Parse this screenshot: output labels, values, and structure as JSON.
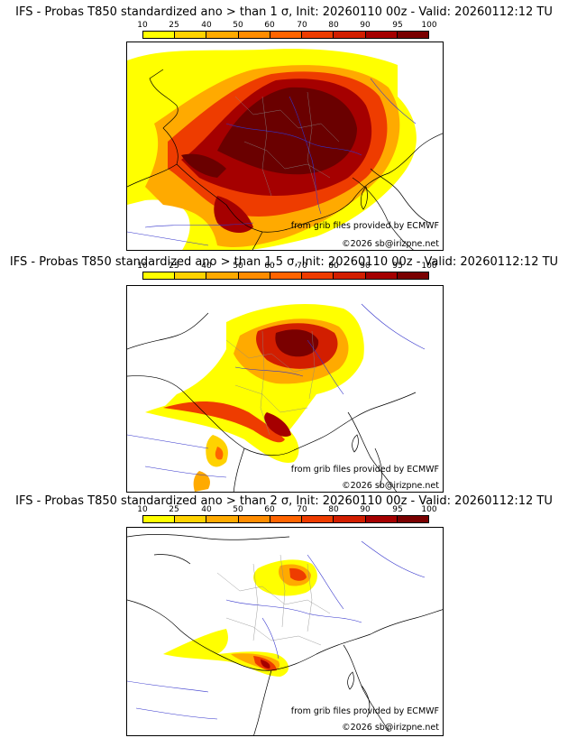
{
  "legend": {
    "ticks": [
      "10",
      "25",
      "40",
      "50",
      "60",
      "70",
      "80",
      "90",
      "95",
      "100"
    ],
    "colors": [
      "#ffff00",
      "#ffd200",
      "#ffaa00",
      "#ff8c00",
      "#ff6400",
      "#ee3c00",
      "#d21e00",
      "#a50000",
      "#7a0000"
    ]
  },
  "panels": [
    {
      "title": "IFS - Probas T850  standardized ano > than 1 σ, Init: 20260110 00z - Valid: 20260112:12 TU",
      "credit": "from grib files provided by ECMWF",
      "copyright": "©2026 sb@irizpne.net"
    },
    {
      "title": "IFS - Probas T850  standardized ano > than 1.5 σ, Init: 20260110 00z - Valid: 20260112:12 TU",
      "credit": "from grib files provided by ECMWF",
      "copyright": "©2026 sb@irizpne.net"
    },
    {
      "title": "IFS - Probas T850  standardized ano > than 2 σ, Init: 20260110 00z - Valid: 20260112:12 TU",
      "credit": "from grib files provided by ECMWF",
      "copyright": "©2026 sb@irizpne.net"
    }
  ]
}
